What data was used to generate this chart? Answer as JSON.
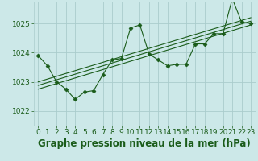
{
  "bg_color": "#cce8e8",
  "grid_color": "#aacccc",
  "line_color": "#1a5c1a",
  "xlim": [
    -0.5,
    23.5
  ],
  "ylim": [
    1021.5,
    1025.75
  ],
  "yticks": [
    1022,
    1023,
    1024,
    1025
  ],
  "xticks": [
    0,
    1,
    2,
    3,
    4,
    5,
    6,
    7,
    8,
    9,
    10,
    11,
    12,
    13,
    14,
    15,
    16,
    17,
    18,
    19,
    20,
    21,
    22,
    23
  ],
  "main_x": [
    0,
    1,
    2,
    3,
    4,
    5,
    6,
    7,
    8,
    9,
    10,
    11,
    12,
    13,
    14,
    15,
    16,
    17,
    18,
    19,
    20,
    21,
    22,
    23
  ],
  "main_y": [
    1023.9,
    1023.55,
    1023.0,
    1022.75,
    1022.4,
    1022.65,
    1022.7,
    1023.25,
    1023.75,
    1023.8,
    1024.85,
    1024.95,
    1023.95,
    1023.75,
    1023.55,
    1023.6,
    1023.6,
    1024.3,
    1024.3,
    1024.65,
    1024.65,
    1025.85,
    1025.05,
    1025.0
  ],
  "regression_lines": [
    {
      "x0": 0,
      "y0": 1022.75,
      "x1": 23,
      "y1": 1024.95
    },
    {
      "x0": 0,
      "y0": 1022.88,
      "x1": 23,
      "y1": 1025.08
    },
    {
      "x0": 0,
      "y0": 1023.0,
      "x1": 23,
      "y1": 1025.2
    }
  ],
  "tick_fontsize": 6.5,
  "tick_color": "#1a5c1a",
  "xlabel_color": "#1a5c1a",
  "xlabel_fontsize": 8.5,
  "label_text": "Graphe pression niveau de la mer (hPa)"
}
